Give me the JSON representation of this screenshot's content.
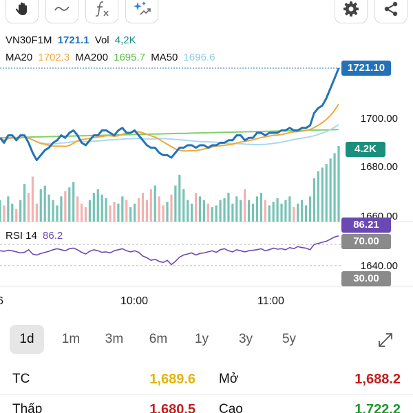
{
  "toolbar": {
    "tools": [
      {
        "name": "gesture-hand-icon"
      },
      {
        "name": "draw-line-icon"
      },
      {
        "name": "function-icon",
        "label": "f"
      },
      {
        "name": "ai-sparkle-icon"
      }
    ],
    "settings_icon": "gear-icon",
    "share_icon": "share-icon"
  },
  "legend": {
    "symbol": "VN30F1M",
    "price": "1721.1",
    "vol_label": "Vol",
    "vol_value": "4,2K",
    "ma20_label": "MA20",
    "ma20_value": "1702.3",
    "ma200_label": "MA200",
    "ma200_value": "1695.7",
    "ma50_label": "MA50",
    "ma50_value": "1696.6"
  },
  "rsi": {
    "label": "RSI 14",
    "value": "86.2"
  },
  "tags": {
    "last_price": "1721.10",
    "volume": "4.2K",
    "rsi_value": "86.21",
    "rsi_upper": "70.00",
    "rsi_lower": "30.00"
  },
  "price_axis": [
    "1700.00",
    "1680.00",
    "1660.00",
    "1640.00"
  ],
  "time_axis": [
    "6",
    "10:00",
    "11:00"
  ],
  "colors": {
    "price_line": "#2372b8",
    "ma20": "#f0a83a",
    "ma200": "#7fd06a",
    "ma50": "#a9d8f2",
    "rsi_line": "#6a49b4",
    "tag_blue": "#2372b8",
    "tag_green": "#1a8f7d",
    "tag_purple": "#6a49b4",
    "tag_gray": "#8a8a8a",
    "vol_up": "#5fb8a8",
    "vol_down": "#f2a3a3",
    "up": "#1a9a28",
    "down": "#c61d1d",
    "ref": "#e7b400"
  },
  "periods": {
    "items": [
      "1d",
      "1m",
      "3m",
      "6m",
      "1y",
      "3y",
      "5y"
    ],
    "active": "1d",
    "expand_icon": "expand-arrows-icon"
  },
  "stats": {
    "tc_label": "TC",
    "tc_value": "1,689.6",
    "open_label": "Mở",
    "open_value": "1,688.2",
    "low_label": "Thấp",
    "low_value": "1,680.5",
    "high_label": "Cao",
    "high_value": "1,722.2"
  },
  "chart_data": {
    "type": "line",
    "price_series": [
      1693,
      1691,
      1694,
      1694,
      1692,
      1694,
      1694,
      1691,
      1687,
      1684,
      1686,
      1688,
      1689,
      1691,
      1692,
      1694,
      1693,
      1695,
      1696,
      1694,
      1691,
      1690,
      1692,
      1694,
      1694,
      1696,
      1696,
      1695,
      1694,
      1696,
      1697,
      1695,
      1695,
      1696,
      1694,
      1692,
      1690,
      1689,
      1689,
      1687,
      1686,
      1686,
      1685,
      1687,
      1689,
      1689,
      1690,
      1690,
      1689,
      1690,
      1690,
      1689,
      1690,
      1690,
      1691,
      1691,
      1692,
      1692,
      1694,
      1694,
      1692,
      1693,
      1693,
      1695,
      1695,
      1694,
      1695,
      1695,
      1695,
      1696,
      1696,
      1697,
      1696,
      1696,
      1697,
      1697,
      1698,
      1703,
      1705,
      1706,
      1709,
      1713,
      1717,
      1721.1
    ],
    "volume_series": [
      12,
      9,
      14,
      10,
      7,
      12,
      21,
      16,
      25,
      10,
      18,
      20,
      15,
      12,
      9,
      14,
      17,
      19,
      22,
      14,
      10,
      8,
      12,
      16,
      18,
      15,
      13,
      9,
      11,
      10,
      14,
      12,
      8,
      10,
      13,
      16,
      12,
      18,
      20,
      14,
      9,
      11,
      15,
      20,
      26,
      18,
      12,
      10,
      16,
      14,
      12,
      10,
      8,
      9,
      12,
      13,
      16,
      10,
      14,
      12,
      18,
      12,
      10,
      14,
      16,
      12,
      9,
      11,
      13,
      10,
      12,
      14,
      8,
      10,
      12,
      9,
      14,
      24,
      28,
      30,
      32,
      35,
      38,
      42
    ],
    "rsi_series": [
      58,
      57,
      59,
      58,
      56,
      54,
      55,
      60,
      52,
      50,
      53,
      55,
      57,
      60,
      62,
      60,
      58,
      62,
      63,
      60,
      55,
      52,
      57,
      60,
      58,
      55,
      56,
      54,
      58,
      60,
      62,
      58,
      56,
      58,
      55,
      48,
      45,
      40,
      42,
      38,
      36,
      40,
      32,
      38,
      46,
      50,
      52,
      54,
      50,
      53,
      54,
      56,
      58,
      55,
      60,
      62,
      58,
      56,
      60,
      58,
      56,
      58,
      59,
      60,
      62,
      58,
      60,
      63,
      61,
      62,
      60,
      64,
      62,
      66,
      64,
      63,
      60,
      70,
      72,
      74,
      76,
      80,
      84,
      86.2
    ],
    "price_ylim": [
      1630,
      1730
    ],
    "rsi_ylim": [
      0,
      100
    ],
    "rsi_levels": [
      70,
      30
    ],
    "x_ticks": [
      "10:00",
      "11:00"
    ]
  }
}
